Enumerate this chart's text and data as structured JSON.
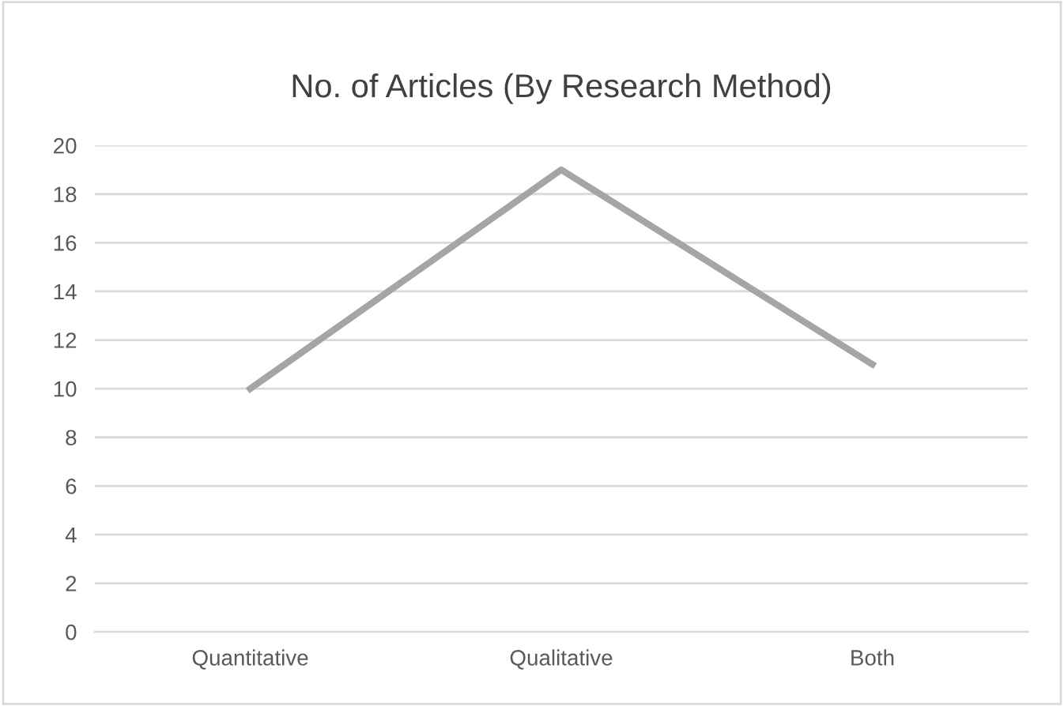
{
  "chart_data": {
    "type": "line",
    "title": "No. of Articles (By Research Method)",
    "categories": [
      "Quantitative",
      "Qualitative",
      "Both"
    ],
    "series": [
      {
        "color": "#a5a5a5",
        "values": [
          10,
          19,
          11
        ]
      }
    ],
    "ylim": [
      0,
      20
    ],
    "yticks": [
      0,
      2,
      4,
      6,
      8,
      10,
      12,
      14,
      16,
      18,
      20
    ],
    "grid": "y",
    "legend": false,
    "marker": "none",
    "line_style": "solid"
  }
}
